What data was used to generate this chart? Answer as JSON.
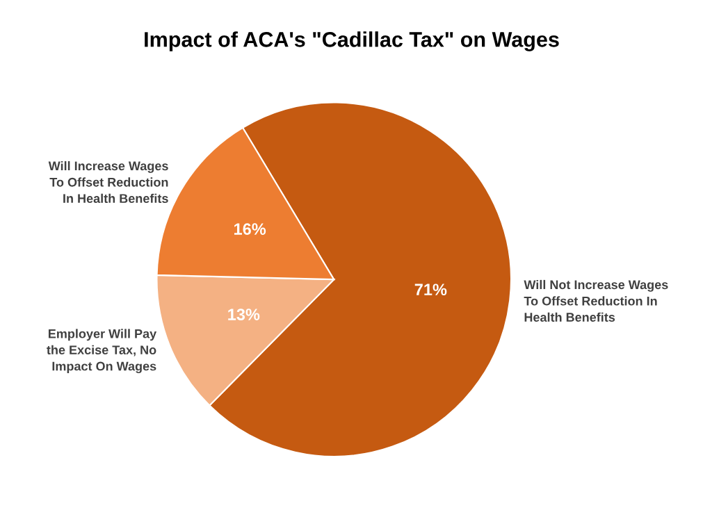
{
  "chart_data": {
    "type": "pie",
    "title": "Impact of ACA's \"Cadillac Tax\" on Wages",
    "categories": [
      "Will Not Increase Wages\nTo Offset Reduction In\nHealth Benefits",
      "Employer Will Pay\nthe Excise Tax, No\nImpact On Wages",
      "Will Increase Wages\nTo Offset Reduction\nIn Health Benefits"
    ],
    "values": [
      71,
      13,
      16
    ],
    "value_labels": [
      "71%",
      "13%",
      "16%"
    ],
    "colors": [
      "#c55a11",
      "#f4b183",
      "#ed7d31"
    ],
    "legend": false
  }
}
